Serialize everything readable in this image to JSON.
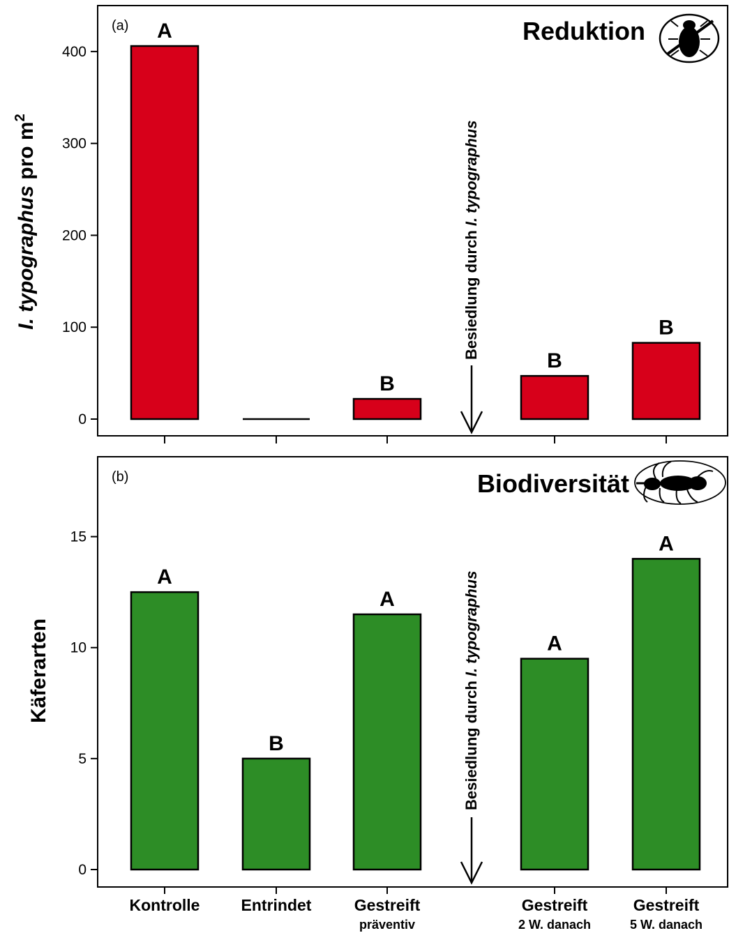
{
  "chart_data": [
    {
      "panel_label": "(a)",
      "type": "bar",
      "title": "Reduktion",
      "icon": "bark-beetle-crossed-out-icon",
      "ylabel_italic": "I. typographus",
      "ylabel_rest": " pro m",
      "ylabel_sup": "2",
      "ylim": [
        0,
        450
      ],
      "yticks": [
        0,
        100,
        200,
        300,
        400
      ],
      "categories": [
        "Kontrolle",
        "Entrindet",
        "Gestreift",
        "",
        "Gestreift",
        "Gestreift"
      ],
      "values": [
        406,
        0,
        22,
        null,
        47,
        83
      ],
      "letters": [
        "A",
        "",
        "B",
        "",
        "B",
        "B"
      ],
      "bar_color": "#d7001a",
      "annotation_plain": "Besiedlung durch ",
      "annotation_italic": "I. typographus"
    },
    {
      "panel_label": "(b)",
      "type": "bar",
      "title": "Biodiversität",
      "icon": "beetle-silhouette-icon",
      "ylabel": "Käferarten",
      "ylim": [
        0,
        18.6
      ],
      "yticks": [
        0,
        5,
        10,
        15
      ],
      "categories": [
        "Kontrolle",
        "Entrindet",
        "Gestreift",
        "",
        "Gestreift",
        "Gestreift"
      ],
      "sublabels": [
        "",
        "",
        "präventiv",
        "",
        "2 W. danach",
        "5 W. danach"
      ],
      "values": [
        12.5,
        5,
        11.5,
        null,
        9.5,
        14
      ],
      "letters": [
        "A",
        "B",
        "A",
        "",
        "A",
        "A"
      ],
      "bar_color": "#2d8d26",
      "annotation_plain": "Besiedlung durch ",
      "annotation_italic": "I. typographus"
    }
  ]
}
